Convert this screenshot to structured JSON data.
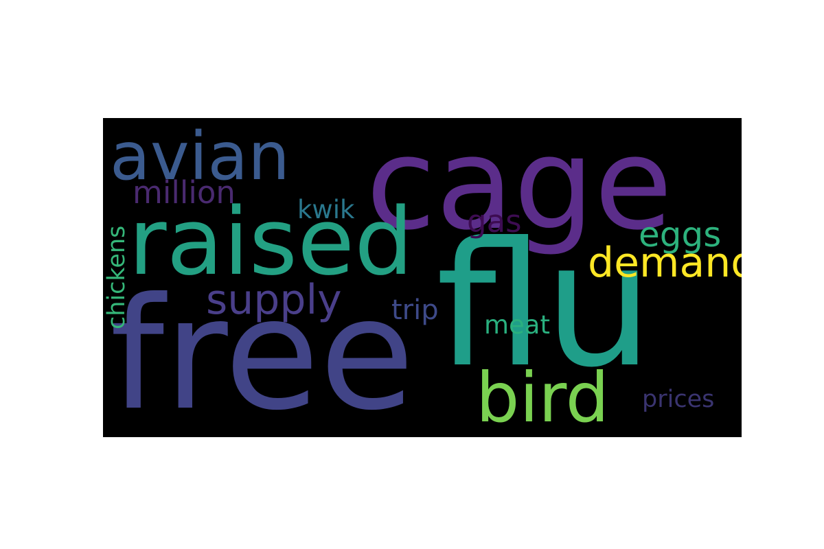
{
  "words": [
    {
      "key": "cage",
      "text": "cage",
      "color": "#5b2d8a"
    },
    {
      "key": "flu",
      "text": "flu",
      "color": "#1f9e89"
    },
    {
      "key": "free",
      "text": "free",
      "color": "#414487"
    },
    {
      "key": "raised",
      "text": "raised",
      "color": "#23a083"
    },
    {
      "key": "avian",
      "text": "avian",
      "color": "#3b5b8f"
    },
    {
      "key": "bird",
      "text": "bird",
      "color": "#7ad151"
    },
    {
      "key": "demand",
      "text": "demand",
      "color": "#fde725"
    },
    {
      "key": "supply",
      "text": "supply",
      "color": "#4a3f8a"
    },
    {
      "key": "million",
      "text": "million",
      "color": "#4a2a70"
    },
    {
      "key": "eggs",
      "text": "eggs",
      "color": "#2db27d"
    },
    {
      "key": "gas",
      "text": "gas",
      "color": "#3d0c52"
    },
    {
      "key": "kwik",
      "text": "kwik",
      "color": "#2a788e"
    },
    {
      "key": "chickens",
      "text": "chickens",
      "color": "#35b779"
    },
    {
      "key": "trip",
      "text": "trip",
      "color": "#3e4a89"
    },
    {
      "key": "meat",
      "text": "meat",
      "color": "#2ab07f"
    },
    {
      "key": "prices",
      "text": "prices",
      "color": "#3a3470"
    }
  ]
}
